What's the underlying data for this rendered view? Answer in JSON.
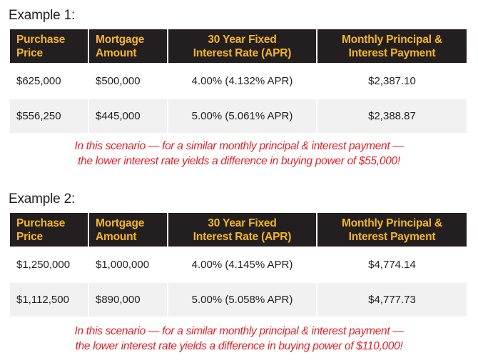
{
  "colors": {
    "header_bg": "#231f20",
    "header_text": "#f5b629",
    "alt_row_bg": "#f1f1f2",
    "note_text": "#e21f26",
    "body_text": "#231f20"
  },
  "headers": {
    "purchase_price": [
      "Purchase",
      "Price"
    ],
    "mortgage_amount": [
      "Mortgage",
      "Amount"
    ],
    "rate": [
      "30 Year Fixed",
      "Interest Rate (APR)"
    ],
    "payment": [
      "Monthly Principal &",
      "Interest Payment"
    ]
  },
  "examples": [
    {
      "title": "Example 1:",
      "rows": [
        {
          "purchase_price": "$625,000",
          "mortgage_amount": "$500,000",
          "rate": "4.00% (4.132% APR)",
          "payment": "$2,387.10"
        },
        {
          "purchase_price": "$556,250",
          "mortgage_amount": "$445,000",
          "rate": "5.00% (5.061% APR)",
          "payment": "$2,388.87"
        }
      ],
      "note_line1": "In this scenario — for a similar monthly principal & interest payment —",
      "note_line2": "the lower interest rate yields a difference in buying power of $55,000!"
    },
    {
      "title": "Example 2:",
      "rows": [
        {
          "purchase_price": "$1,250,000",
          "mortgage_amount": "$1,000,000",
          "rate": "4.00% (4.145% APR)",
          "payment": "$4,774.14"
        },
        {
          "purchase_price": "$1,112,500",
          "mortgage_amount": "$890,000",
          "rate": "5.00% (5.058% APR)",
          "payment": "$4,777.73"
        }
      ],
      "note_line1": "In this scenario — for a similar monthly principal & interest payment —",
      "note_line2": "the lower interest rate yields a difference in buying power of $110,000!"
    }
  ]
}
